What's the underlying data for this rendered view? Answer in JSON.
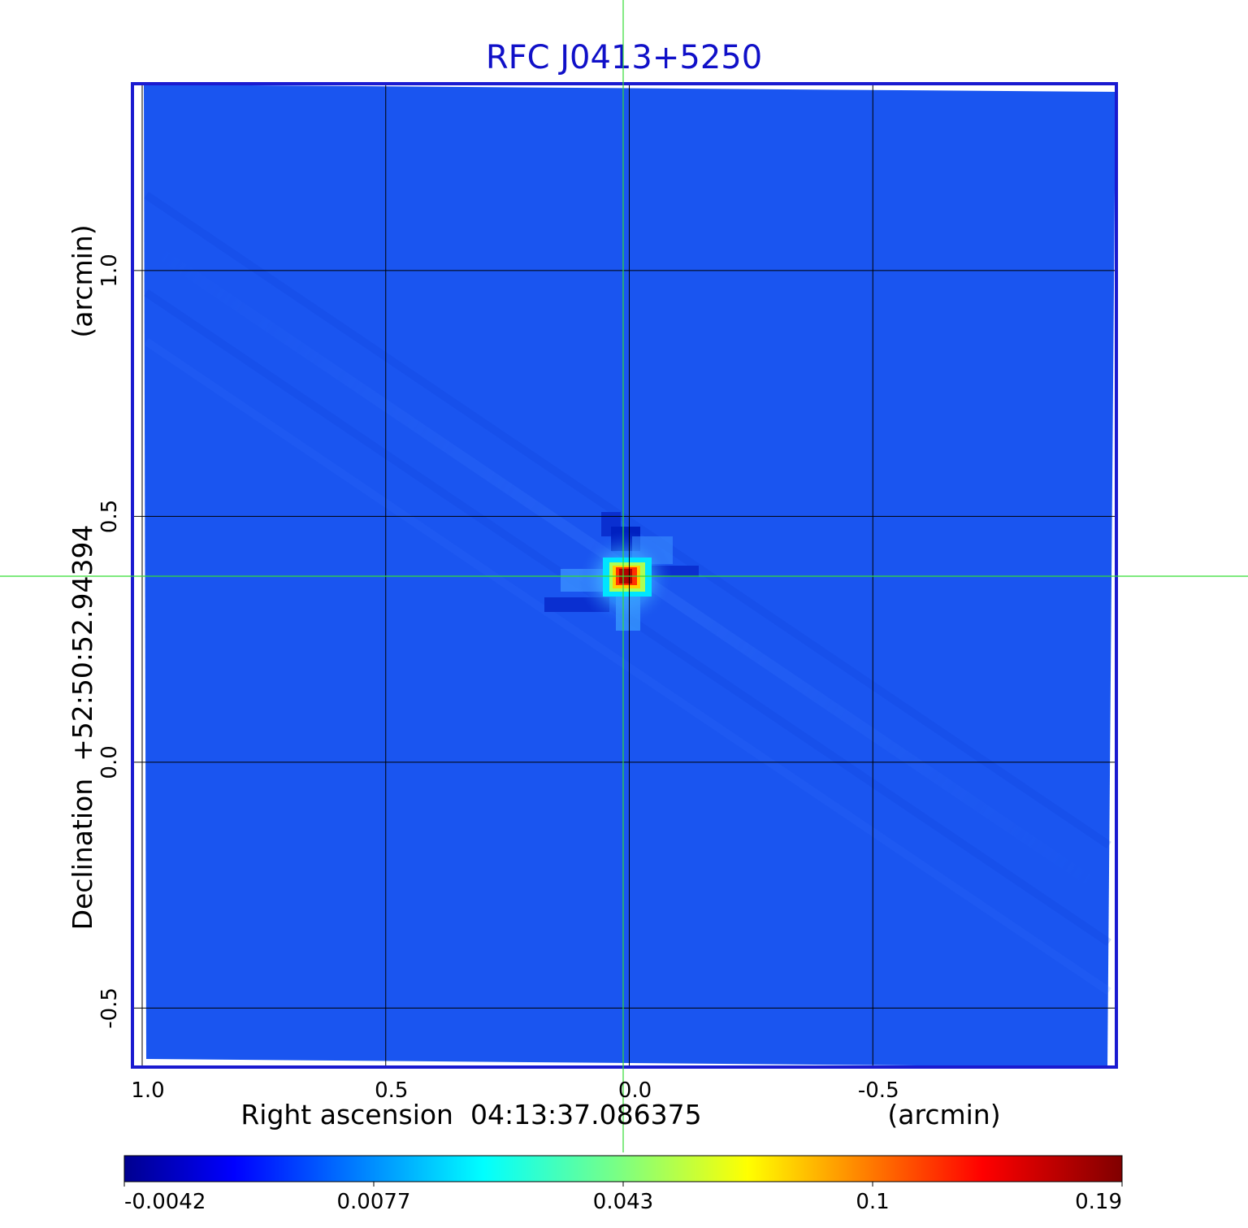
{
  "chart_data": {
    "type": "heatmap",
    "title": "RFC J0413+5250",
    "xlabel": "Right ascension  04:13:37.086375",
    "xunit": "(arcmin)",
    "ylabel": "Declination  +52:50:52.94394",
    "yunit": "(arcmin)",
    "xlim": [
      1.02,
      -1.0
    ],
    "ylim": [
      -0.62,
      1.38
    ],
    "xticks": [
      {
        "value": 1.0,
        "label": "1.0"
      },
      {
        "value": 0.5,
        "label": "0.5"
      },
      {
        "value": 0.0,
        "label": "0.0"
      },
      {
        "value": -0.5,
        "label": "-0.5"
      }
    ],
    "yticks": [
      {
        "value": 1.0,
        "label": "1.0"
      },
      {
        "value": 0.5,
        "label": "0.5"
      },
      {
        "value": 0.0,
        "label": "0.0"
      },
      {
        "value": -0.5,
        "label": "-0.5"
      }
    ],
    "grid": true,
    "crosshair": {
      "x": 0.02,
      "y": 0.385
    },
    "source_peak": {
      "x": 0.02,
      "y": 0.385,
      "value": 0.19
    },
    "colorbar": {
      "ticks": [
        "-0.0042",
        "0.0077",
        "0.043",
        "0.1",
        "0.19"
      ],
      "colormap": "jet"
    },
    "colors": {
      "background_field": "#1a55f0",
      "title": "#1010c8",
      "frame": "#1a1ad0",
      "grid": "#000000",
      "crosshair": "#33dd33"
    }
  }
}
